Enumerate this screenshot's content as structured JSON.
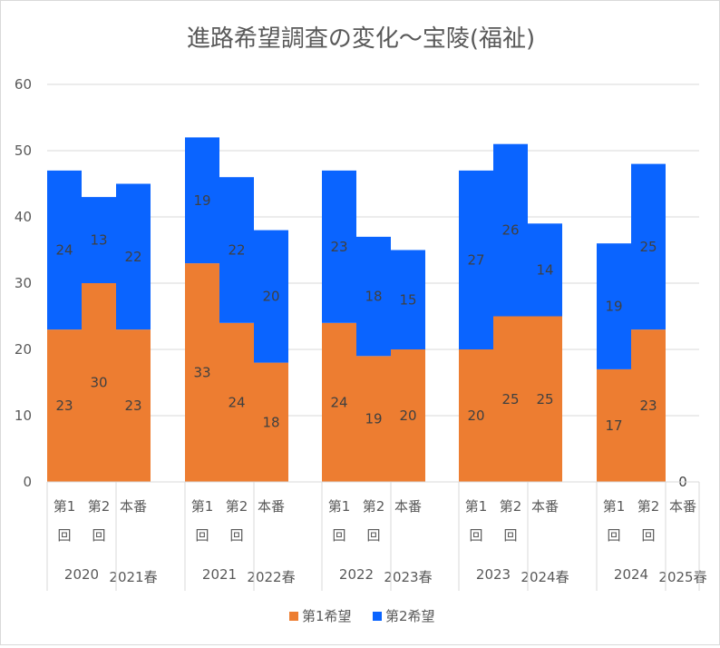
{
  "chart_data": {
    "type": "bar",
    "stacked": true,
    "title": "進路希望調査の変化～宝陵(福祉)",
    "xlabel": "",
    "ylabel": "",
    "ylim": [
      0,
      60
    ],
    "yticks": [
      0,
      10,
      20,
      30,
      40,
      50,
      60
    ],
    "grid": true,
    "legend_position": "bottom",
    "groups": [
      {
        "label": "2020",
        "spring_label": "2021春"
      },
      {
        "label": "2021",
        "spring_label": "2022春"
      },
      {
        "label": "2022",
        "spring_label": "2023春"
      },
      {
        "label": "2023",
        "spring_label": "2024春"
      },
      {
        "label": "2024",
        "spring_label": "2025春"
      }
    ],
    "sub_categories": [
      {
        "line1": "第1",
        "line2": "回"
      },
      {
        "line1": "第2",
        "line2": "回"
      },
      {
        "line1": "本番",
        "line2": ""
      }
    ],
    "series": [
      {
        "name": "第1希望",
        "color": "#ed7d31",
        "values": [
          [
            23,
            30,
            23
          ],
          [
            33,
            24,
            18
          ],
          [
            24,
            19,
            20
          ],
          [
            20,
            25,
            25
          ],
          [
            17,
            23,
            0
          ]
        ]
      },
      {
        "name": "第2希望",
        "color": "#0a64ff",
        "values": [
          [
            24,
            13,
            22
          ],
          [
            19,
            22,
            20
          ],
          [
            23,
            18,
            15
          ],
          [
            27,
            26,
            14
          ],
          [
            19,
            25,
            0
          ]
        ]
      }
    ]
  }
}
